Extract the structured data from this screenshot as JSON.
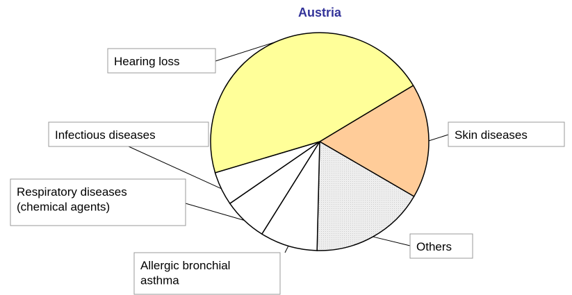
{
  "chart_data": {
    "type": "pie",
    "title": "Austria",
    "categories": [
      "Skin diseases",
      "Others",
      "Allergic bronchial\nasthma",
      "Respiratory diseases\n(chemical agents)",
      "Infectious diseases",
      "Hearing loss"
    ],
    "values": [
      17,
      17,
      8.5,
      6.5,
      5,
      46
    ],
    "colors": [
      "#ffcc99",
      "#eeeeee",
      "#ffffff",
      "#ffffff",
      "#ffffff",
      "#ffff99"
    ]
  }
}
